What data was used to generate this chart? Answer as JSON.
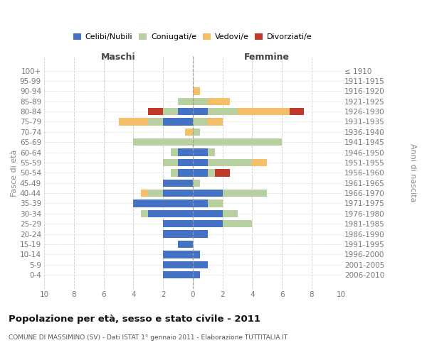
{
  "age_groups": [
    "100+",
    "95-99",
    "90-94",
    "85-89",
    "80-84",
    "75-79",
    "70-74",
    "65-69",
    "60-64",
    "55-59",
    "50-54",
    "45-49",
    "40-44",
    "35-39",
    "30-34",
    "25-29",
    "20-24",
    "15-19",
    "10-14",
    "5-9",
    "0-4"
  ],
  "birth_years": [
    "≤ 1910",
    "1911-1915",
    "1916-1920",
    "1921-1925",
    "1926-1930",
    "1931-1935",
    "1936-1940",
    "1941-1945",
    "1946-1950",
    "1951-1955",
    "1956-1960",
    "1961-1965",
    "1966-1970",
    "1971-1975",
    "1976-1980",
    "1981-1985",
    "1986-1990",
    "1991-1995",
    "1996-2000",
    "2001-2005",
    "2006-2010"
  ],
  "colors": {
    "celibi": "#4472c4",
    "coniugati": "#b8cfa0",
    "vedovi": "#f5bf6a",
    "divorziati": "#c0392b"
  },
  "maschi_celibi": [
    0,
    0,
    0,
    0,
    1,
    2,
    0,
    0,
    1,
    1,
    1,
    2,
    2,
    4,
    3,
    2,
    2,
    1,
    2,
    2,
    2
  ],
  "maschi_coniugati": [
    0,
    0,
    0,
    1,
    1,
    1,
    0,
    4,
    0.5,
    1,
    0.5,
    0,
    1,
    0,
    0.5,
    0,
    0,
    0,
    0,
    0,
    0
  ],
  "maschi_vedovi": [
    0,
    0,
    0,
    0,
    0,
    2,
    0.5,
    0,
    0,
    0,
    0,
    0,
    0.5,
    0,
    0,
    0,
    0,
    0,
    0,
    0,
    0
  ],
  "maschi_divorziati": [
    0,
    0,
    0,
    0,
    1,
    0,
    0,
    0,
    0,
    0,
    0,
    0,
    0,
    0,
    0,
    0,
    0,
    0,
    0,
    0,
    0
  ],
  "femmine_nubili": [
    0,
    0,
    0,
    0,
    1,
    0,
    0,
    0,
    1,
    1,
    1,
    0,
    2,
    1,
    2,
    2,
    1,
    0,
    0.5,
    1,
    0.5
  ],
  "femmine_coniugate": [
    0,
    0,
    0,
    1,
    2,
    1,
    0.5,
    6,
    0.5,
    3,
    0.5,
    0.5,
    3,
    1,
    1,
    2,
    0,
    0,
    0,
    0,
    0
  ],
  "femmine_vedove": [
    0,
    0,
    0.5,
    1.5,
    3.5,
    1,
    0,
    0,
    0,
    1,
    0,
    0,
    0,
    0,
    0,
    0,
    0,
    0,
    0,
    0,
    0
  ],
  "femmine_divorziate": [
    0,
    0,
    0,
    0,
    1,
    0,
    0,
    0,
    0,
    0,
    1,
    0,
    0,
    0,
    0,
    0,
    0,
    0,
    0,
    0,
    0
  ],
  "xlim": 10,
  "title": "Popolazione per età, sesso e stato civile - 2011",
  "subtitle": "COMUNE DI MASSIMINO (SV) - Dati ISTAT 1° gennaio 2011 - Elaborazione TUTTITALIA.IT",
  "ylabel_left": "Fasce di età",
  "ylabel_right": "Anni di nascita",
  "header_left": "Maschi",
  "header_right": "Femmine",
  "legend_labels": [
    "Celibi/Nubili",
    "Coniugati/e",
    "Vedovi/e",
    "Divorziati/e"
  ]
}
